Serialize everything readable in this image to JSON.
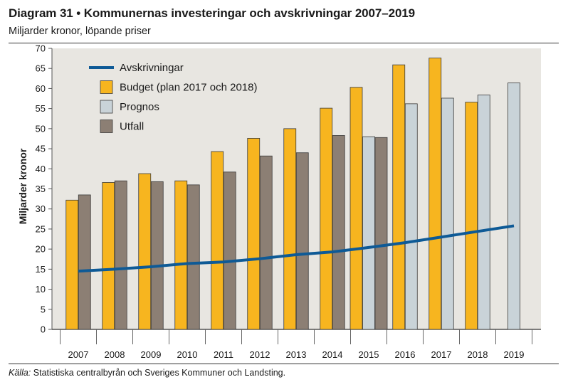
{
  "header": {
    "title": "Diagram 31 • Kommunernas investeringar och avskrivningar 2007–2019",
    "subtitle": "Miljarder kronor, löpande priser"
  },
  "footer": {
    "source_label": "Källa:",
    "source_text": " Statistiska centralbyrån och Sveriges Kommuner och Landsting."
  },
  "colors": {
    "plot_bg": "#e8e6e1",
    "budget": "#f7b51f",
    "prognos": "#c9d3d8",
    "utfall": "#8c7f74",
    "avskrivningar": "#0e5a96",
    "bar_stroke": "#3a3a3a"
  },
  "chart_data": {
    "type": "bar",
    "title": "Diagram 31 • Kommunernas investeringar och avskrivningar 2007–2019",
    "subtitle": "Miljarder kronor, löpande priser",
    "xlabel": "",
    "ylabel": "Miljarder kronor",
    "ylim": [
      0,
      70
    ],
    "yticks": [
      0,
      5,
      10,
      15,
      20,
      25,
      30,
      35,
      40,
      45,
      50,
      55,
      60,
      65,
      70
    ],
    "categories": [
      "2007",
      "2008",
      "2009",
      "2010",
      "2011",
      "2012",
      "2013",
      "2014",
      "2015",
      "2016",
      "2017",
      "2018",
      "2019"
    ],
    "grid": false,
    "legend_position": "top-left",
    "legend": [
      "Avskrivningar",
      "Budget (plan 2017 och 2018)",
      "Prognos",
      "Utfall"
    ],
    "series": [
      {
        "name": "Budget (plan 2017 och 2018)",
        "kind": "bar",
        "values": [
          32.2,
          36.6,
          38.8,
          37.0,
          44.3,
          47.6,
          50.0,
          55.1,
          60.3,
          65.9,
          67.6,
          56.6,
          null
        ]
      },
      {
        "name": "Prognos",
        "kind": "bar",
        "values": [
          null,
          null,
          null,
          null,
          null,
          null,
          null,
          null,
          48.0,
          56.2,
          57.6,
          58.4,
          61.4
        ]
      },
      {
        "name": "Utfall",
        "kind": "bar",
        "values": [
          33.5,
          37.0,
          36.8,
          36.0,
          39.2,
          43.2,
          44.0,
          48.3,
          47.8,
          null,
          null,
          null,
          null
        ]
      },
      {
        "name": "Avskrivningar",
        "kind": "line",
        "values": [
          14.5,
          15.0,
          15.6,
          16.4,
          16.8,
          17.6,
          18.6,
          19.3,
          20.4,
          21.6,
          23.0,
          24.4,
          25.8
        ]
      }
    ]
  }
}
